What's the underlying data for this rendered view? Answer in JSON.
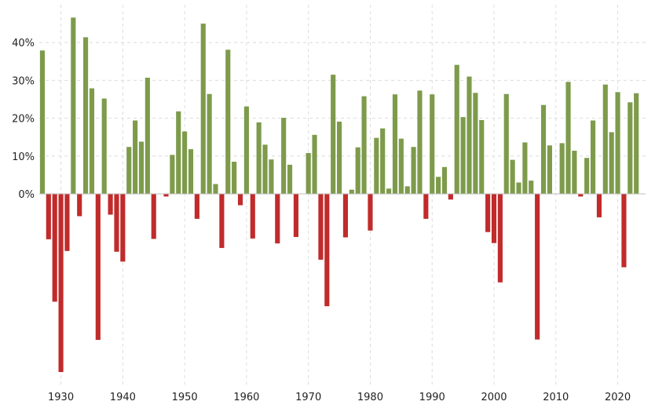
{
  "chart_data": {
    "type": "bar",
    "title": "",
    "xlabel": "",
    "ylabel": "",
    "x_start": 1927,
    "x_end": 2024,
    "xlim": [
      1926.5,
      2024.5
    ],
    "ylim": [
      -50,
      50
    ],
    "grid": true,
    "legend": "none",
    "colors": {
      "positive": "#7d9b4b",
      "negative": "#c12b2b"
    },
    "y_ticks": [
      {
        "value": 0,
        "label": "0%"
      },
      {
        "value": 10,
        "label": "10%"
      },
      {
        "value": 20,
        "label": "20%"
      },
      {
        "value": 30,
        "label": "30%"
      },
      {
        "value": 40,
        "label": "40%"
      }
    ],
    "x_ticks": [
      {
        "value": 1930,
        "label": "1930"
      },
      {
        "value": 1940,
        "label": "1940"
      },
      {
        "value": 1950,
        "label": "1950"
      },
      {
        "value": 1960,
        "label": "1960"
      },
      {
        "value": 1970,
        "label": "1970"
      },
      {
        "value": 1980,
        "label": "1980"
      },
      {
        "value": 1990,
        "label": "1990"
      },
      {
        "value": 2000,
        "label": "2000"
      },
      {
        "value": 2010,
        "label": "2010"
      },
      {
        "value": 2020,
        "label": "2020"
      }
    ],
    "series": [
      {
        "x": [
          1927,
          1928,
          1929,
          1930,
          1931,
          1932,
          1933,
          1934,
          1935,
          1936,
          1937,
          1938,
          1939,
          1940,
          1941,
          1942,
          1943,
          1944,
          1945,
          1946,
          1947,
          1948,
          1949,
          1950,
          1951,
          1952,
          1953,
          1954,
          1955,
          1956,
          1957,
          1958,
          1959,
          1960,
          1961,
          1962,
          1963,
          1964,
          1965,
          1966,
          1967,
          1968,
          1969,
          1970,
          1971,
          1972,
          1973,
          1974,
          1975,
          1976,
          1977,
          1978,
          1979,
          1980,
          1981,
          1982,
          1983,
          1984,
          1985,
          1986,
          1987,
          1988,
          1989,
          1990,
          1991,
          1992,
          1993,
          1994,
          1995,
          1996,
          1997,
          1998,
          1999,
          2000,
          2001,
          2002,
          2003,
          2004,
          2005,
          2006,
          2007,
          2008,
          2009,
          2010,
          2011,
          2012,
          2013,
          2014,
          2015,
          2016,
          2017,
          2018,
          2019,
          2020,
          2021,
          2022,
          2023,
          2024
        ],
        "values": [
          37.9,
          -12,
          -28.5,
          -47.1,
          -15.1,
          46.6,
          -5.9,
          41.4,
          27.9,
          -38.6,
          25.2,
          -5.5,
          -15.3,
          -17.9,
          12.4,
          19.4,
          13.8,
          30.7,
          -11.9,
          0,
          -0.7,
          10.3,
          21.8,
          16.5,
          11.8,
          -6.6,
          45,
          26.4,
          2.6,
          -14.3,
          38.1,
          8.5,
          -3,
          23.1,
          -11.8,
          18.9,
          13,
          9.1,
          -13.1,
          20.1,
          7.7,
          -11.4,
          0.1,
          10.8,
          15.6,
          -17.4,
          -29.7,
          31.5,
          19.1,
          -11.5,
          1.1,
          12.3,
          25.8,
          -9.7,
          14.8,
          17.3,
          1.4,
          26.3,
          14.6,
          2,
          12.4,
          27.3,
          -6.6,
          26.3,
          4.5,
          7.1,
          -1.5,
          34.1,
          20.3,
          31,
          26.7,
          19.5,
          -10.1,
          -13,
          -23.4,
          26.4,
          9,
          3,
          13.6,
          3.5,
          -38.5,
          23.5,
          12.8,
          0,
          13.4,
          29.6,
          11.4,
          -0.7,
          9.5,
          19.4,
          -6.2,
          28.9,
          16.3,
          26.9,
          -19.4,
          24.2,
          26.6,
          0
        ]
      }
    ]
  }
}
